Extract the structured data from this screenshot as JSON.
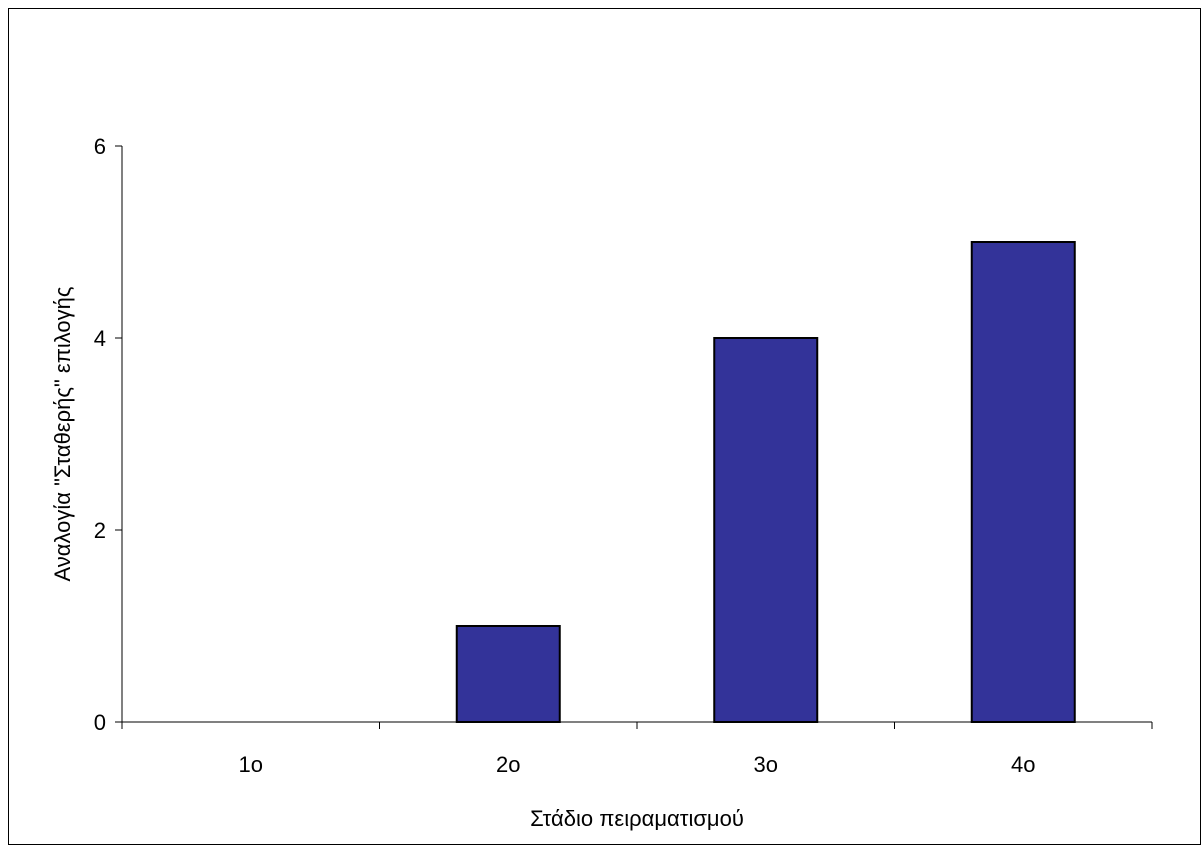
{
  "chart_data": {
    "type": "bar",
    "categories": [
      "1o",
      "2o",
      "3o",
      "4o"
    ],
    "values": [
      0,
      1,
      4,
      5
    ],
    "xlabel": "Στάδιο πειραματισμού",
    "ylabel": "Αναλογία \"Σταθερής\" επιλογής",
    "ylim": [
      0,
      6
    ],
    "yticks": [
      0,
      2,
      4,
      6
    ],
    "grid": false,
    "legend": "none",
    "bar_color": "#333399",
    "bar_edge_color": "#000000"
  }
}
